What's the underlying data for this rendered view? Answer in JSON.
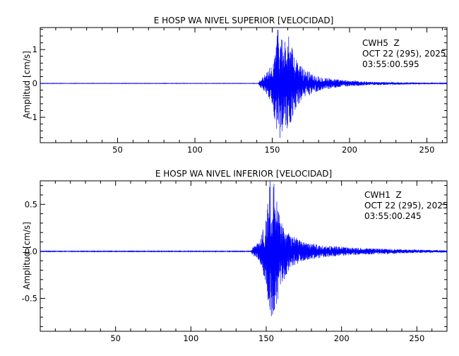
{
  "chart_data": [
    {
      "type": "line",
      "title": "E HOSP WA NIVEL SUPERIOR [VELOCIDAD]",
      "xlabel": "",
      "ylabel": "Amplitud [cm/s]",
      "xlim": [
        0,
        263
      ],
      "ylim": [
        -1.75,
        1.65
      ],
      "xticks": [
        50,
        100,
        150,
        200,
        250
      ],
      "yticks": [
        -1,
        0,
        1
      ],
      "grid": false,
      "station": "CWH5  Z",
      "date": "OCT 22 (295), 2025",
      "time": "03:55:00.595",
      "series": [
        {
          "color": "#0000ff",
          "onset_s": 142,
          "peak_amplitude": 1.75,
          "envelope": [
            {
              "t": 0,
              "amp": 0.005
            },
            {
              "t": 141,
              "amp": 0.005
            },
            {
              "t": 142,
              "amp": 0.1
            },
            {
              "t": 146,
              "amp": 0.3
            },
            {
              "t": 150,
              "amp": 0.6
            },
            {
              "t": 154,
              "amp": 1.75
            },
            {
              "t": 157,
              "amp": 1.35
            },
            {
              "t": 160,
              "amp": 1.5
            },
            {
              "t": 164,
              "amp": 0.85
            },
            {
              "t": 170,
              "amp": 0.45
            },
            {
              "t": 180,
              "amp": 0.22
            },
            {
              "t": 195,
              "amp": 0.1
            },
            {
              "t": 215,
              "amp": 0.05
            },
            {
              "t": 240,
              "amp": 0.03
            },
            {
              "t": 263,
              "amp": 0.02
            }
          ]
        }
      ]
    },
    {
      "type": "line",
      "title": "E HOSP WA NIVEL INFERIOR [VELOCIDAD]",
      "xlabel": "",
      "ylabel": "Amplitud [cm/s]",
      "xlim": [
        0,
        270
      ],
      "ylim": [
        -0.85,
        0.75
      ],
      "xticks": [
        50,
        100,
        150,
        200,
        250
      ],
      "yticks": [
        -0.5,
        0.0,
        0.5
      ],
      "grid": false,
      "station": "CWH1  Z",
      "date": "OCT 22 (295), 2025",
      "time": "03:55:00.245",
      "series": [
        {
          "color": "#0000ff",
          "onset_s": 141,
          "peak_amplitude": 0.82,
          "envelope": [
            {
              "t": 0,
              "amp": 0.003
            },
            {
              "t": 140,
              "amp": 0.003
            },
            {
              "t": 141,
              "amp": 0.05
            },
            {
              "t": 145,
              "amp": 0.1
            },
            {
              "t": 150,
              "amp": 0.35
            },
            {
              "t": 153,
              "amp": 0.82
            },
            {
              "t": 156,
              "amp": 0.7
            },
            {
              "t": 160,
              "amp": 0.35
            },
            {
              "t": 166,
              "amp": 0.18
            },
            {
              "t": 175,
              "amp": 0.1
            },
            {
              "t": 190,
              "amp": 0.06
            },
            {
              "t": 215,
              "amp": 0.035
            },
            {
              "t": 245,
              "amp": 0.02
            },
            {
              "t": 270,
              "amp": 0.012
            }
          ]
        }
      ]
    }
  ]
}
